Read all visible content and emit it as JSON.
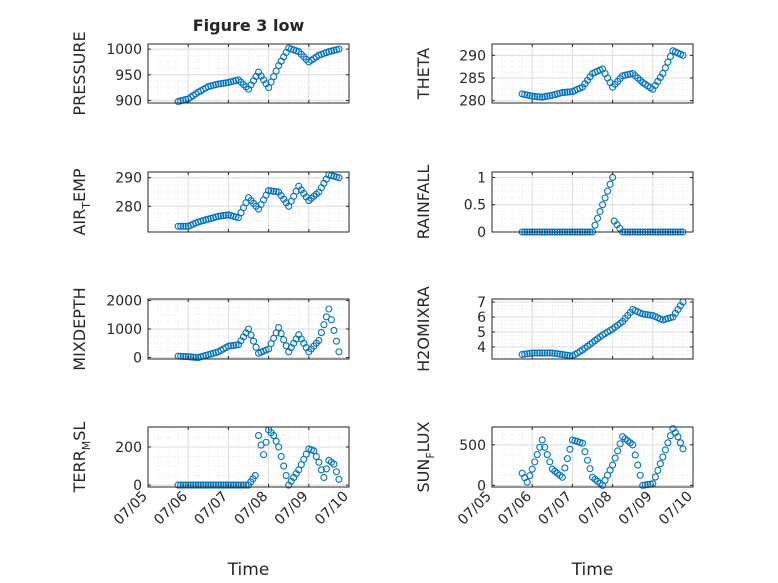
{
  "figure": {
    "title": "Figure 3 low",
    "accent": "#0072BD"
  },
  "chart_data": [
    {
      "type": "scatter",
      "panel": "pressure",
      "title": "Figure 3 low",
      "ylabel": "PRESSURE",
      "xlabel": "",
      "ylim": [
        895,
        1010
      ],
      "yticks": [
        900,
        950,
        1000
      ],
      "xlim": [
        "07/05",
        "07/10"
      ],
      "x": [
        "07/05 18:00",
        "07/06 00:00",
        "07/06 06:00",
        "07/06 12:00",
        "07/06 18:00",
        "07/07 00:00",
        "07/07 06:00",
        "07/07 12:00",
        "07/07 18:00",
        "07/08 00:00",
        "07/08 06:00",
        "07/08 12:00",
        "07/08 18:00",
        "07/09 00:00",
        "07/09 06:00",
        "07/09 12:00",
        "07/09 18:00"
      ],
      "y": [
        898,
        903,
        916,
        927,
        932,
        935,
        940,
        922,
        955,
        925,
        968,
        1002,
        995,
        975,
        988,
        995,
        1000
      ],
      "grid": true
    },
    {
      "type": "scatter",
      "panel": "theta",
      "ylabel": "THETA",
      "xlabel": "",
      "ylim": [
        279.5,
        292.5
      ],
      "yticks": [
        280,
        285,
        290
      ],
      "xlim": [
        "07/05",
        "07/10"
      ],
      "x": [
        "07/05 18:00",
        "07/06 00:00",
        "07/06 06:00",
        "07/06 12:00",
        "07/06 18:00",
        "07/07 00:00",
        "07/07 06:00",
        "07/07 12:00",
        "07/07 18:00",
        "07/08 00:00",
        "07/08 06:00",
        "07/08 12:00",
        "07/08 18:00",
        "07/09 00:00",
        "07/09 06:00",
        "07/09 12:00",
        "07/09 18:00"
      ],
      "y": [
        281.5,
        281,
        280.8,
        281.2,
        281.8,
        282,
        283,
        286,
        287,
        283,
        285.5,
        286,
        284,
        282.5,
        286,
        291,
        290
      ],
      "grid": true
    },
    {
      "type": "scatter",
      "panel": "air_temp",
      "ylabel": "AIR_TEMP",
      "xlabel": "",
      "ylim": [
        271,
        292
      ],
      "yticks": [
        280,
        290
      ],
      "xlim": [
        "07/05",
        "07/10"
      ],
      "x": [
        "07/05 18:00",
        "07/06 00:00",
        "07/06 06:00",
        "07/06 12:00",
        "07/06 18:00",
        "07/07 00:00",
        "07/07 06:00",
        "07/07 12:00",
        "07/07 18:00",
        "07/08 00:00",
        "07/08 06:00",
        "07/08 12:00",
        "07/08 18:00",
        "07/09 00:00",
        "07/09 06:00",
        "07/09 12:00",
        "07/09 18:00"
      ],
      "y": [
        273,
        273,
        274.5,
        275.5,
        276.5,
        277,
        276,
        283,
        279,
        285.5,
        285,
        280,
        287,
        282,
        285,
        291,
        290
      ],
      "grid": true
    },
    {
      "type": "scatter",
      "panel": "rainfall",
      "ylabel": "RAINFALL",
      "xlabel": "",
      "ylim": [
        0,
        1.1
      ],
      "yticks": [
        0,
        0.5,
        1
      ],
      "xlim": [
        "07/05",
        "07/10"
      ],
      "x": [
        "07/05 18:00",
        "07/06 00:00",
        "07/06 12:00",
        "07/07 00:00",
        "07/07 12:00",
        "07/08 00:00",
        "07/08 01:00",
        "07/08 06:00",
        "07/08 12:00",
        "07/09 00:00",
        "07/09 12:00",
        "07/09 18:00"
      ],
      "y": [
        0,
        0,
        0,
        0,
        0,
        1,
        0.2,
        0,
        0,
        0,
        0,
        0
      ],
      "grid": true
    },
    {
      "type": "scatter",
      "panel": "mixdepth",
      "ylabel": "MIXDEPTH",
      "xlabel": "",
      "ylim": [
        -50,
        2050
      ],
      "yticks": [
        0,
        1000,
        2000
      ],
      "xlim": [
        "07/05",
        "07/10"
      ],
      "x": [
        "07/05 18:00",
        "07/06 00:00",
        "07/06 06:00",
        "07/06 12:00",
        "07/06 18:00",
        "07/07 00:00",
        "07/07 06:00",
        "07/07 12:00",
        "07/07 18:00",
        "07/08 00:00",
        "07/08 06:00",
        "07/08 12:00",
        "07/08 18:00",
        "07/09 00:00",
        "07/09 06:00",
        "07/09 12:00",
        "07/09 18:00"
      ],
      "y": [
        50,
        30,
        0,
        100,
        200,
        400,
        450,
        1000,
        150,
        300,
        1050,
        200,
        800,
        200,
        600,
        1700,
        200
      ],
      "grid": true
    },
    {
      "type": "scatter",
      "panel": "h2omixra",
      "ylabel": "H2OMIXRA",
      "xlabel": "",
      "ylim": [
        3.2,
        7.2
      ],
      "yticks": [
        4,
        5,
        6,
        7
      ],
      "xlim": [
        "07/05",
        "07/10"
      ],
      "x": [
        "07/05 18:00",
        "07/06 00:00",
        "07/06 12:00",
        "07/07 00:00",
        "07/07 06:00",
        "07/07 12:00",
        "07/07 18:00",
        "07/08 00:00",
        "07/08 06:00",
        "07/08 12:00",
        "07/08 18:00",
        "07/09 00:00",
        "07/09 06:00",
        "07/09 12:00",
        "07/09 18:00"
      ],
      "y": [
        3.5,
        3.6,
        3.6,
        3.4,
        3.8,
        4.3,
        4.8,
        5.2,
        5.7,
        6.5,
        6.2,
        6.1,
        5.8,
        6.0,
        7.0
      ],
      "grid": true
    },
    {
      "type": "scatter",
      "panel": "terr_msl",
      "ylabel": "TERR_MSL",
      "xlabel": "Time",
      "ylim": [
        -10,
        305
      ],
      "yticks": [
        0,
        200
      ],
      "xlim": [
        "07/05",
        "07/10"
      ],
      "xticks": [
        "07/05",
        "07/06",
        "07/07",
        "07/08",
        "07/09",
        "07/10"
      ],
      "x": [
        "07/05 18:00",
        "07/06 00:00",
        "07/06 12:00",
        "07/07 00:00",
        "07/07 12:00",
        "07/07 16:00",
        "07/07 18:00",
        "07/07 21:00",
        "07/08 00:00",
        "07/08 03:00",
        "07/08 06:00",
        "07/08 12:00",
        "07/08 18:00",
        "07/09 00:00",
        "07/09 03:00",
        "07/09 06:00",
        "07/09 09:00",
        "07/09 12:00",
        "07/09 15:00",
        "07/09 18:00"
      ],
      "y": [
        0,
        0,
        0,
        0,
        0,
        50,
        260,
        160,
        290,
        260,
        200,
        0,
        80,
        190,
        180,
        120,
        40,
        130,
        110,
        30
      ],
      "grid": true
    },
    {
      "type": "scatter",
      "panel": "sun_flux",
      "ylabel": "SUN_FLUX",
      "xlabel": "Time",
      "ylim": [
        -20,
        720
      ],
      "yticks": [
        0,
        500
      ],
      "xlim": [
        "07/05",
        "07/10"
      ],
      "xticks": [
        "07/05",
        "07/06",
        "07/07",
        "07/08",
        "07/09",
        "07/10"
      ],
      "x": [
        "07/05 18:00",
        "07/05 21:00",
        "07/06 00:00",
        "07/06 06:00",
        "07/06 12:00",
        "07/06 18:00",
        "07/07 00:00",
        "07/07 06:00",
        "07/07 12:00",
        "07/07 18:00",
        "07/08 00:00",
        "07/08 06:00",
        "07/08 12:00",
        "07/08 18:00",
        "07/09 00:00",
        "07/09 06:00",
        "07/09 12:00",
        "07/09 15:00",
        "07/09 18:00"
      ],
      "y": [
        150,
        40,
        200,
        560,
        200,
        100,
        560,
        520,
        100,
        0,
        250,
        600,
        500,
        0,
        20,
        350,
        700,
        600,
        450
      ],
      "grid": true
    }
  ]
}
